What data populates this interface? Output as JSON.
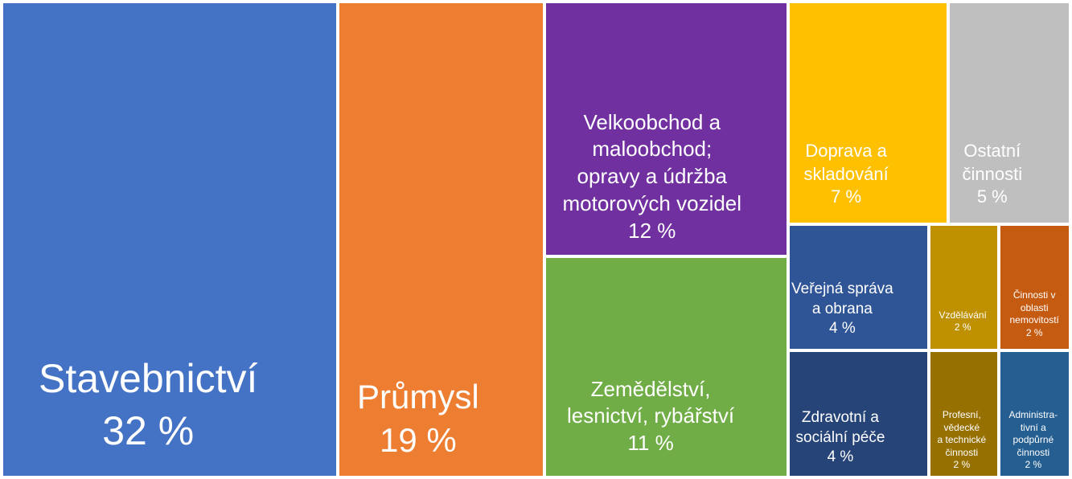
{
  "chart_data": {
    "type": "treemap",
    "items": [
      {
        "id": "stavebnictvi",
        "label": "Stavebnictví",
        "value": 32,
        "value_label": "32 %",
        "color": "#4472C4"
      },
      {
        "id": "prumysl",
        "label": "Průmysl",
        "value": 19,
        "value_label": "19 %",
        "color": "#ED7D31"
      },
      {
        "id": "velkoobchod",
        "label": "Velkoobchod a\nmaloobchod;\nopravy a údržba\nmotorových vozidel",
        "value": 12,
        "value_label": "12 %",
        "color": "#7030A0"
      },
      {
        "id": "zemedelstvi",
        "label": "Zemědělství,\nlesnictví, rybářství",
        "value": 11,
        "value_label": "11 %",
        "color": "#70AD47"
      },
      {
        "id": "doprava",
        "label": "Doprava a\nskladování",
        "value": 7,
        "value_label": "7 %",
        "color": "#FFC000"
      },
      {
        "id": "ostatni",
        "label": "Ostatní\nčinnosti",
        "value": 5,
        "value_label": "5 %",
        "color": "#BFBFBF"
      },
      {
        "id": "verejna-sprava",
        "label": "Veřejná správa\na obrana",
        "value": 4,
        "value_label": "4 %",
        "color": "#2F5597"
      },
      {
        "id": "zdravotni",
        "label": "Zdravotní a\nsociální péče",
        "value": 4,
        "value_label": "4 %",
        "color": "#264478"
      },
      {
        "id": "vzdelavani",
        "label": "Vzdělávání",
        "value": 2,
        "value_label": "2 %",
        "color": "#BF9000"
      },
      {
        "id": "nemovitosti",
        "label": "Činnosti v\noblasti\nnemovitostí",
        "value": 2,
        "value_label": "2 %",
        "color": "#C55A11"
      },
      {
        "id": "profesni",
        "label": "Profesní,\nvědecké\na technické\nčinnosti",
        "value": 2,
        "value_label": "2 %",
        "color": "#967000"
      },
      {
        "id": "administrativni",
        "label": "Administra-\ntivní a\npodpůrné\nčinnosti",
        "value": 2,
        "value_label": "2 %",
        "color": "#255E91"
      }
    ]
  }
}
